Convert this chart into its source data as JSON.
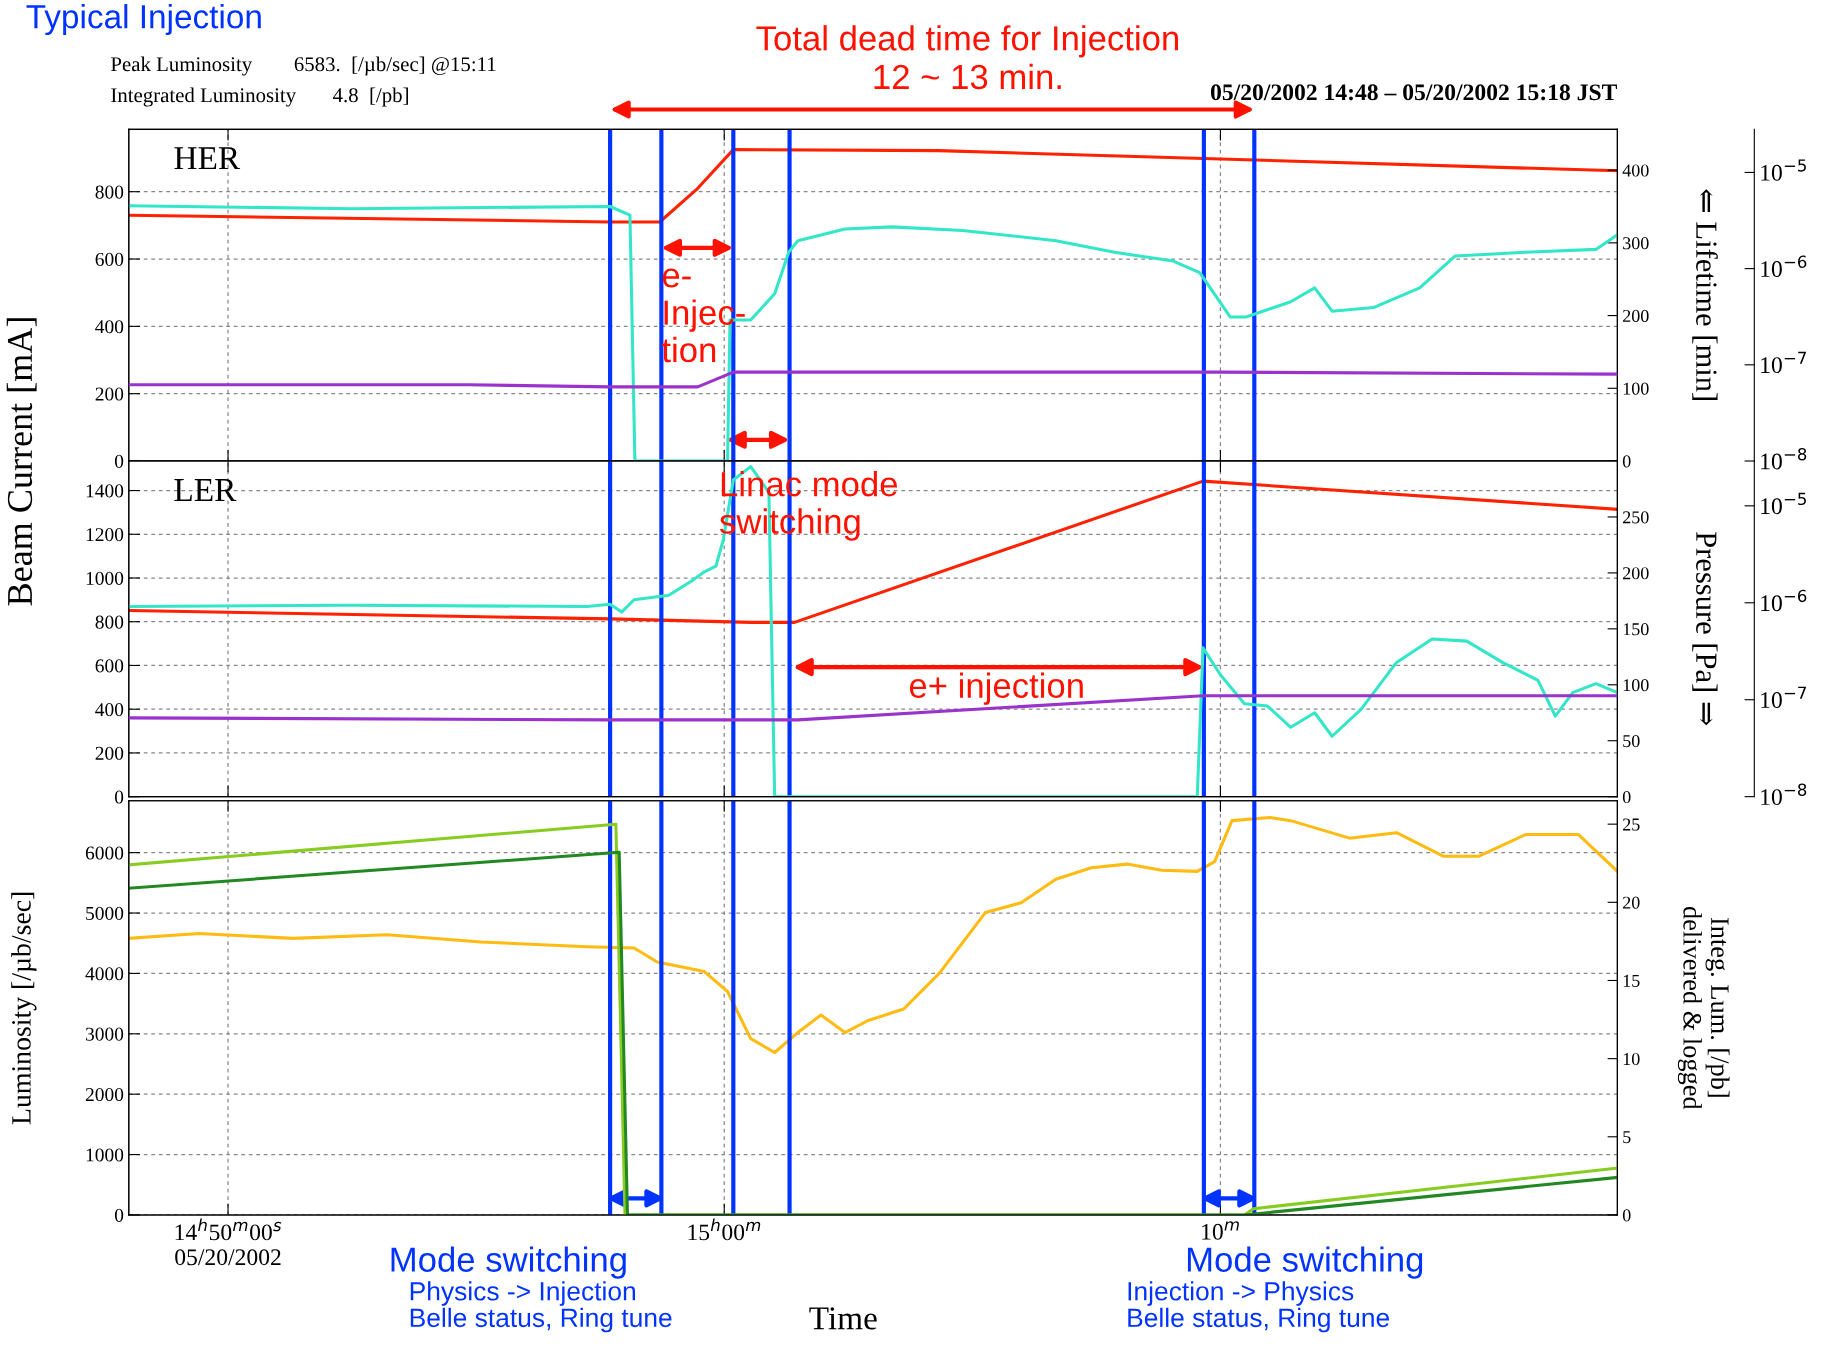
{
  "chart_data": [
    {
      "type": "line",
      "title": "HER",
      "ylabel": "Beam Current [mA]",
      "y2label": "⇐ Lifetime [min]",
      "annotations": [
        "Typical Injection",
        "Peak Luminosity        6583.  [/µb/sec] @15:11",
        "Integrated Luminosity       4.8  [/pb]",
        "05/20/2002 14:48 – 05/20/2002 15:18 JST",
        "Total dead time for Injection\n12 ~ 13 min.",
        "e-\nInjec-\ntion",
        "Linac mode\nswitching"
      ],
      "xlim": [
        "2002-05-20T14:48",
        "2002-05-20T15:18"
      ],
      "xticks": [
        {
          "value": "2002-05-20T14:50",
          "label": null
        },
        {
          "value": "2002-05-20T15:00",
          "label": null
        },
        {
          "value": "2002-05-20T15:10",
          "label": null
        }
      ],
      "ylim": [
        0,
        985
      ],
      "yticks": [
        0,
        200,
        400,
        600,
        800
      ],
      "y2lim": [
        0,
        456
      ],
      "y2ticks": [
        0,
        100,
        200,
        300,
        400
      ],
      "y3lim": [
        1e-08,
        2.8e-05
      ],
      "y3ticks": [
        {
          "value": 1e-05,
          "label": "10$^{−5}$"
        },
        {
          "value": 1e-06,
          "label": "10$^{−6}$"
        },
        {
          "value": 1e-07,
          "label": "10$^{−7}$"
        },
        {
          "value": 1e-08,
          "label": "10$^{−8}$"
        }
      ],
      "log": "y3",
      "grid": true,
      "tick_labels": "y",
      "ref_lines": [
        {
          "axis": "x",
          "value": "2002-05-20T14:57:42",
          "color": "#0033ff"
        },
        {
          "axis": "x",
          "value": "2002-05-20T14:58:44",
          "color": "#0033ff"
        },
        {
          "axis": "x",
          "value": "2002-05-20T15:00:11",
          "color": "#0033ff"
        },
        {
          "axis": "x",
          "value": "2002-05-20T15:01:19",
          "color": "#0033ff"
        },
        {
          "axis": "x",
          "value": "2002-05-20T15:09:40",
          "color": "#0033ff"
        },
        {
          "axis": "x",
          "value": "2002-05-20T15:10:41",
          "color": "#0033ff"
        }
      ],
      "series": [
        {
          "color": "#ff2200",
          "x": [
            "2002-05-20T14:48:00",
            "2002-05-20T14:57:42",
            "2002-05-20T14:58:42",
            "2002-05-20T14:59:28",
            "2002-05-20T15:00:11",
            "2002-05-20T15:04:19",
            "2002-05-20T15:10:00",
            "2002-05-20T15:18:00"
          ],
          "values": [
            730,
            710,
            710,
            810,
            925,
            922,
            897,
            862
          ]
        },
        {
          "color": "#33e6c8",
          "axis": "y2",
          "x": [
            "2002-05-20T14:48:00",
            "2002-05-20T14:52:30",
            "2002-05-20T14:57:42",
            "2002-05-20T14:58:06",
            "2002-05-20T14:58:12",
            "2002-05-20T14:58:17",
            "2002-05-20T15:00:04",
            "2002-05-20T15:00:07",
            "2002-05-20T15:00:32",
            "2002-05-20T15:01:01",
            "2002-05-20T15:01:18",
            "2002-05-20T15:01:29",
            "2002-05-20T15:02:26",
            "2002-05-20T15:03:23",
            "2002-05-20T15:04:48",
            "2002-05-20T15:06:41",
            "2002-05-20T15:07:52",
            "2002-05-20T15:09:03",
            "2002-05-20T15:09:35",
            "2002-05-20T15:10:12",
            "2002-05-20T15:10:31",
            "2002-05-20T15:11:25",
            "2002-05-20T15:11:54",
            "2002-05-20T15:12:15",
            "2002-05-20T15:13:05",
            "2002-05-20T15:14:01",
            "2002-05-20T15:14:44",
            "2002-05-20T15:16:09",
            "2002-05-20T15:17:34",
            "2002-05-20T15:18:00"
          ],
          "values": [
            351,
            347,
            350,
            338,
            0,
            0,
            0,
            194,
            194,
            230,
            287,
            303,
            319,
            322,
            317,
            303,
            287,
            275,
            259,
            198,
            198,
            219,
            238,
            206,
            211,
            238,
            282,
            287,
            291,
            311
          ]
        },
        {
          "color": "#9933cc",
          "axis": "y3",
          "x": [
            "2002-05-20T14:48:00",
            "2002-05-20T14:54:51",
            "2002-05-20T14:57:42",
            "2002-05-20T14:59:28",
            "2002-05-20T15:00:11",
            "2002-05-20T15:10:00",
            "2002-05-20T15:18:00"
          ],
          "values": [
            6.2e-08,
            6.2e-08,
            5.9e-08,
            5.9e-08,
            8.4e-08,
            8.4e-08,
            8e-08
          ]
        }
      ]
    },
    {
      "type": "line",
      "title": "LER",
      "y3label": "Pressure [Pa] ⇒",
      "annotations": [
        "e+ injection"
      ],
      "xlim": [
        "2002-05-20T14:48",
        "2002-05-20T15:18"
      ],
      "xticks": [
        {
          "value": "2002-05-20T14:50",
          "label": null
        },
        {
          "value": "2002-05-20T15:00",
          "label": null
        },
        {
          "value": "2002-05-20T15:10",
          "label": null
        }
      ],
      "ylim": [
        0,
        1535
      ],
      "yticks": [
        0,
        200,
        400,
        600,
        800,
        1000,
        1200,
        1400
      ],
      "y2lim": [
        0,
        300
      ],
      "y2ticks": [
        0,
        50,
        100,
        150,
        200,
        250
      ],
      "y3lim": [
        1e-08,
        2.9e-05
      ],
      "y3ticks": [
        {
          "value": 1e-05,
          "label": "10$^{−5}$"
        },
        {
          "value": 1e-06,
          "label": "10$^{−6}$"
        },
        {
          "value": 1e-07,
          "label": "10$^{−7}$"
        },
        {
          "value": 1e-08,
          "label": "10$^{−8}$"
        }
      ],
      "log": "y3",
      "grid": true,
      "tick_labels": "y",
      "ref_lines": [
        {
          "axis": "x",
          "value": "2002-05-20T14:57:42",
          "color": "#0033ff"
        },
        {
          "axis": "x",
          "value": "2002-05-20T14:58:44",
          "color": "#0033ff"
        },
        {
          "axis": "x",
          "value": "2002-05-20T15:00:11",
          "color": "#0033ff"
        },
        {
          "axis": "x",
          "value": "2002-05-20T15:01:19",
          "color": "#0033ff"
        },
        {
          "axis": "x",
          "value": "2002-05-20T15:09:40",
          "color": "#0033ff"
        },
        {
          "axis": "x",
          "value": "2002-05-20T15:10:41",
          "color": "#0033ff"
        }
      ],
      "series": [
        {
          "color": "#ff2200",
          "x": [
            "2002-05-20T14:48:00",
            "2002-05-20T14:57:42",
            "2002-05-20T15:00:32",
            "2002-05-20T15:01:25",
            "2002-05-20T15:09:39",
            "2002-05-20T15:18:00"
          ],
          "values": [
            851,
            813,
            797,
            797,
            1443,
            1314
          ]
        },
        {
          "color": "#33e6c8",
          "axis": "y2",
          "x": [
            "2002-05-20T14:48:00",
            "2002-05-20T14:52:30",
            "2002-05-20T14:57:14",
            "2002-05-20T14:57:42",
            "2002-05-20T14:57:56",
            "2002-05-20T14:58:11",
            "2002-05-20T14:58:53",
            "2002-05-20T14:59:21",
            "2002-05-20T14:59:36",
            "2002-05-20T14:59:50",
            "2002-05-20T14:59:59",
            "2002-05-20T15:00:11",
            "2002-05-20T15:00:32",
            "2002-05-20T15:00:54",
            "2002-05-20T15:01:01",
            "2002-05-20T15:01:57",
            "2002-05-20T15:09:32",
            "2002-05-20T15:09:39",
            "2002-05-20T15:10:00",
            "2002-05-20T15:10:29",
            "2002-05-20T15:10:57",
            "2002-05-20T15:11:25",
            "2002-05-20T15:11:54",
            "2002-05-20T15:12:15",
            "2002-05-20T15:12:50",
            "2002-05-20T15:13:33",
            "2002-05-20T15:14:16",
            "2002-05-20T15:14:58",
            "2002-05-20T15:15:41",
            "2002-05-20T15:16:24",
            "2002-05-20T15:16:45",
            "2002-05-20T15:17:06",
            "2002-05-20T15:17:34",
            "2002-05-20T15:18:00"
          ],
          "values": [
            170,
            171,
            170,
            172,
            165,
            176,
            180,
            193,
            201,
            206,
            230,
            283,
            295,
            272,
            0,
            0,
            0,
            133,
            109,
            83,
            81,
            62,
            75,
            54,
            78,
            120,
            141,
            139,
            120,
            104,
            72,
            93,
            101,
            93
          ]
        },
        {
          "color": "#9933cc",
          "axis": "y3",
          "x": [
            "2002-05-20T14:48:00",
            "2002-05-20T14:57:42",
            "2002-05-20T15:01:29",
            "2002-05-20T15:09:39",
            "2002-05-20T15:18:00"
          ],
          "values": [
            6.5e-08,
            6.2e-08,
            6.2e-08,
            1.1e-07,
            1.1e-07
          ]
        }
      ]
    },
    {
      "type": "line",
      "xlabel": "Time",
      "ylabel": "Luminosity [/µb/sec]",
      "y2label": "Integ. Lum. [/pb]\ndelivered & logged",
      "annotations": [
        "Mode switching",
        "Physics -> Injection\nBelle status, Ring tune",
        "Mode switching",
        "Injection -> Physics\nBelle status, Ring tune"
      ],
      "xlim": [
        "2002-05-20T14:48",
        "2002-05-20T15:18"
      ],
      "xticks": [
        {
          "value": "2002-05-20T14:50",
          "label": "14$^{h}$50$^{m}$00$^{s}$\n05/20/2002"
        },
        {
          "value": "2002-05-20T15:00",
          "label": "15$^{h}$00$^{m}$"
        },
        {
          "value": "2002-05-20T15:10",
          "label": "10$^{m}$"
        }
      ],
      "ylim": [
        0,
        6860
      ],
      "yticks": [
        0,
        1000,
        2000,
        3000,
        4000,
        5000,
        6000
      ],
      "y2lim": [
        0,
        26.5
      ],
      "y2ticks": [
        0,
        5,
        10,
        15,
        20,
        25
      ],
      "grid": true,
      "ref_lines": [
        {
          "axis": "x",
          "value": "2002-05-20T14:57:42",
          "color": "#0033ff"
        },
        {
          "axis": "x",
          "value": "2002-05-20T14:58:44",
          "color": "#0033ff"
        },
        {
          "axis": "x",
          "value": "2002-05-20T15:00:11",
          "color": "#0033ff"
        },
        {
          "axis": "x",
          "value": "2002-05-20T15:01:19",
          "color": "#0033ff"
        },
        {
          "axis": "x",
          "value": "2002-05-20T15:09:40",
          "color": "#0033ff"
        },
        {
          "axis": "x",
          "value": "2002-05-20T15:10:41",
          "color": "#0033ff"
        }
      ],
      "series": [
        {
          "color": "#ffbb11",
          "x": [
            "2002-05-20T14:48:00",
            "2002-05-20T14:49:25",
            "2002-05-20T14:51:19",
            "2002-05-20T14:53:12",
            "2002-05-20T14:55:06",
            "2002-05-20T14:57:14",
            "2002-05-20T14:58:11",
            "2002-05-20T14:58:39",
            "2002-05-20T14:59:36",
            "2002-05-20T15:00:04",
            "2002-05-20T15:00:32",
            "2002-05-20T15:01:01",
            "2002-05-20T15:01:29",
            "2002-05-20T15:01:57",
            "2002-05-20T15:02:26",
            "2002-05-20T15:02:54",
            "2002-05-20T15:03:37",
            "2002-05-20T15:04:20",
            "2002-05-20T15:05:16",
            "2002-05-20T15:05:59",
            "2002-05-20T15:06:41",
            "2002-05-20T15:07:24",
            "2002-05-20T15:08:07",
            "2002-05-20T15:08:49",
            "2002-05-20T15:09:32",
            "2002-05-20T15:09:53",
            "2002-05-20T15:10:14",
            "2002-05-20T15:11:00",
            "2002-05-20T15:11:25",
            "2002-05-20T15:12:36",
            "2002-05-20T15:13:33",
            "2002-05-20T15:14:30",
            "2002-05-20T15:15:12",
            "2002-05-20T15:16:09",
            "2002-05-20T15:17:13",
            "2002-05-20T15:18:00"
          ],
          "values": [
            4580,
            4660,
            4580,
            4640,
            4520,
            4440,
            4420,
            4190,
            4030,
            3700,
            2920,
            2690,
            3020,
            3310,
            3020,
            3220,
            3410,
            4000,
            5010,
            5170,
            5560,
            5750,
            5810,
            5710,
            5690,
            5850,
            6530,
            6583,
            6530,
            6240,
            6330,
            5940,
            5940,
            6300,
            6300,
            5690
          ]
        },
        {
          "color": "#88cc22",
          "axis": "y2",
          "x": [
            "2002-05-20T14:48:00",
            "2002-05-20T14:57:49",
            "2002-05-20T14:58:00",
            "2002-05-20T15:10:29",
            "2002-05-20T15:10:40",
            "2002-05-20T15:18:00"
          ],
          "values": [
            22.4,
            25.0,
            0,
            0,
            0.4,
            3.0
          ]
        },
        {
          "color": "#228822",
          "axis": "y2",
          "x": [
            "2002-05-20T14:48:00",
            "2002-05-20T14:57:53",
            "2002-05-20T14:58:03",
            "2002-05-20T15:10:29",
            "2002-05-20T15:18:00"
          ],
          "values": [
            20.9,
            23.2,
            0,
            0,
            2.4
          ]
        }
      ]
    }
  ]
}
